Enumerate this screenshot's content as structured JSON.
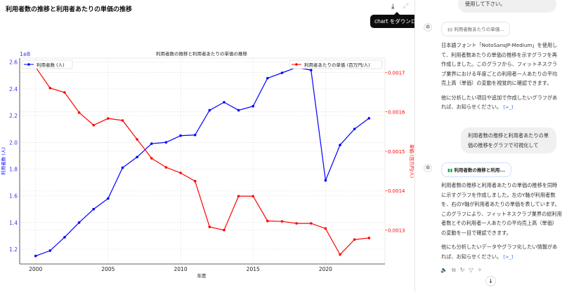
{
  "header": {
    "title": "利用者数の推移と利用者あたりの単価の推移",
    "download_tooltip": "chart をダウンロードする",
    "download_icon": "download-icon",
    "expand_icon": "expand-icon"
  },
  "chat": {
    "user_msg_1_tail": "使用して下さい。",
    "pill_1": "利用者数あたりの単価...",
    "reply_1_p1": "日本語フォント「NotoSansJP-Medium」を使用して、利用者数あたりの単価の推移を示すグラフを再作成しました。このグラフから、フィットネスクラブ業界における年度ごとの利用者一人あたりの平均売上高（単価）の変動を視覚的に確認できます。",
    "reply_1_p2": "他に分析したい項目や追加で作成したいグラフがあれば、お知らせください。",
    "cite": "[>_]",
    "user_msg_2": "利用者数の推移と利用者あたりの単価の推移をグラフで可視化して",
    "pill_2": "利用者数の推移と利用...",
    "reply_2_p1": "利用者数の推移と利用者あたりの単価の推移を同時に示すグラフを作成しました。左のY軸が利用者数を、右のY軸が利用者あたりの単価を表しています。このグラフにより、フィットネスクラブ業界の総利用者数とその利用者一人あたりの平均売上高（単価）の変動を一目で確認できます。",
    "reply_2_p2": "他にも分析したいデータやグラフ化したい情報があれば、お知らせください。",
    "actions": [
      "speaker-icon",
      "copy-icon",
      "regenerate-icon",
      "thumbs-down-icon",
      "sparkle-icon"
    ]
  },
  "chart_data": {
    "type": "line",
    "title": "利用者数の推移と利用者あたりの単価の推移",
    "xlabel": "年度",
    "ylabel_left": "利用者数 (人)",
    "ylabel_right": "単価 (百万円/人)",
    "left_offset_label": "1e8",
    "x": [
      2000,
      2001,
      2002,
      2003,
      2004,
      2005,
      2006,
      2007,
      2008,
      2009,
      2010,
      2011,
      2012,
      2013,
      2014,
      2015,
      2016,
      2017,
      2018,
      2019,
      2020,
      2021,
      2022,
      2023
    ],
    "xticks": [
      "2000",
      "2005",
      "2010",
      "2015",
      "2020"
    ],
    "yticks_left": [
      "1.2",
      "1.4",
      "1.6",
      "1.8",
      "2.0",
      "2.2",
      "2.4",
      "2.6"
    ],
    "yticks_right": [
      "0.0013",
      "0.0014",
      "0.0015",
      "0.0016",
      "0.0017"
    ],
    "xlim": [
      1998.9,
      2024.1
    ],
    "ylim_left": [
      1.09,
      2.63
    ],
    "ylim_right": [
      0.001214,
      0.001736
    ],
    "grid": true,
    "series": [
      {
        "name": "利用者数 (人)",
        "axis": "left",
        "color": "#0000ff",
        "legend": "top-left",
        "values": [
          1.15,
          1.19,
          1.29,
          1.4,
          1.5,
          1.58,
          1.81,
          1.89,
          1.99,
          2.0,
          2.05,
          2.055,
          2.24,
          2.3,
          2.24,
          2.27,
          2.48,
          2.52,
          2.56,
          2.54,
          1.715,
          1.98,
          2.1,
          2.18
        ]
      },
      {
        "name": "利用者あたりの単価 (百万円/人)",
        "axis": "right",
        "color": "#ff0000",
        "legend": "top-right",
        "values": [
          0.001713,
          0.00166,
          0.001649,
          0.001598,
          0.001566,
          0.001583,
          0.001578,
          0.00153,
          0.001482,
          0.001459,
          0.001445,
          0.001424,
          0.001308,
          0.0013,
          0.001386,
          0.001386,
          0.001323,
          0.001322,
          0.001317,
          0.001317,
          0.001304,
          0.001238,
          0.001276,
          0.00128
        ]
      }
    ]
  }
}
